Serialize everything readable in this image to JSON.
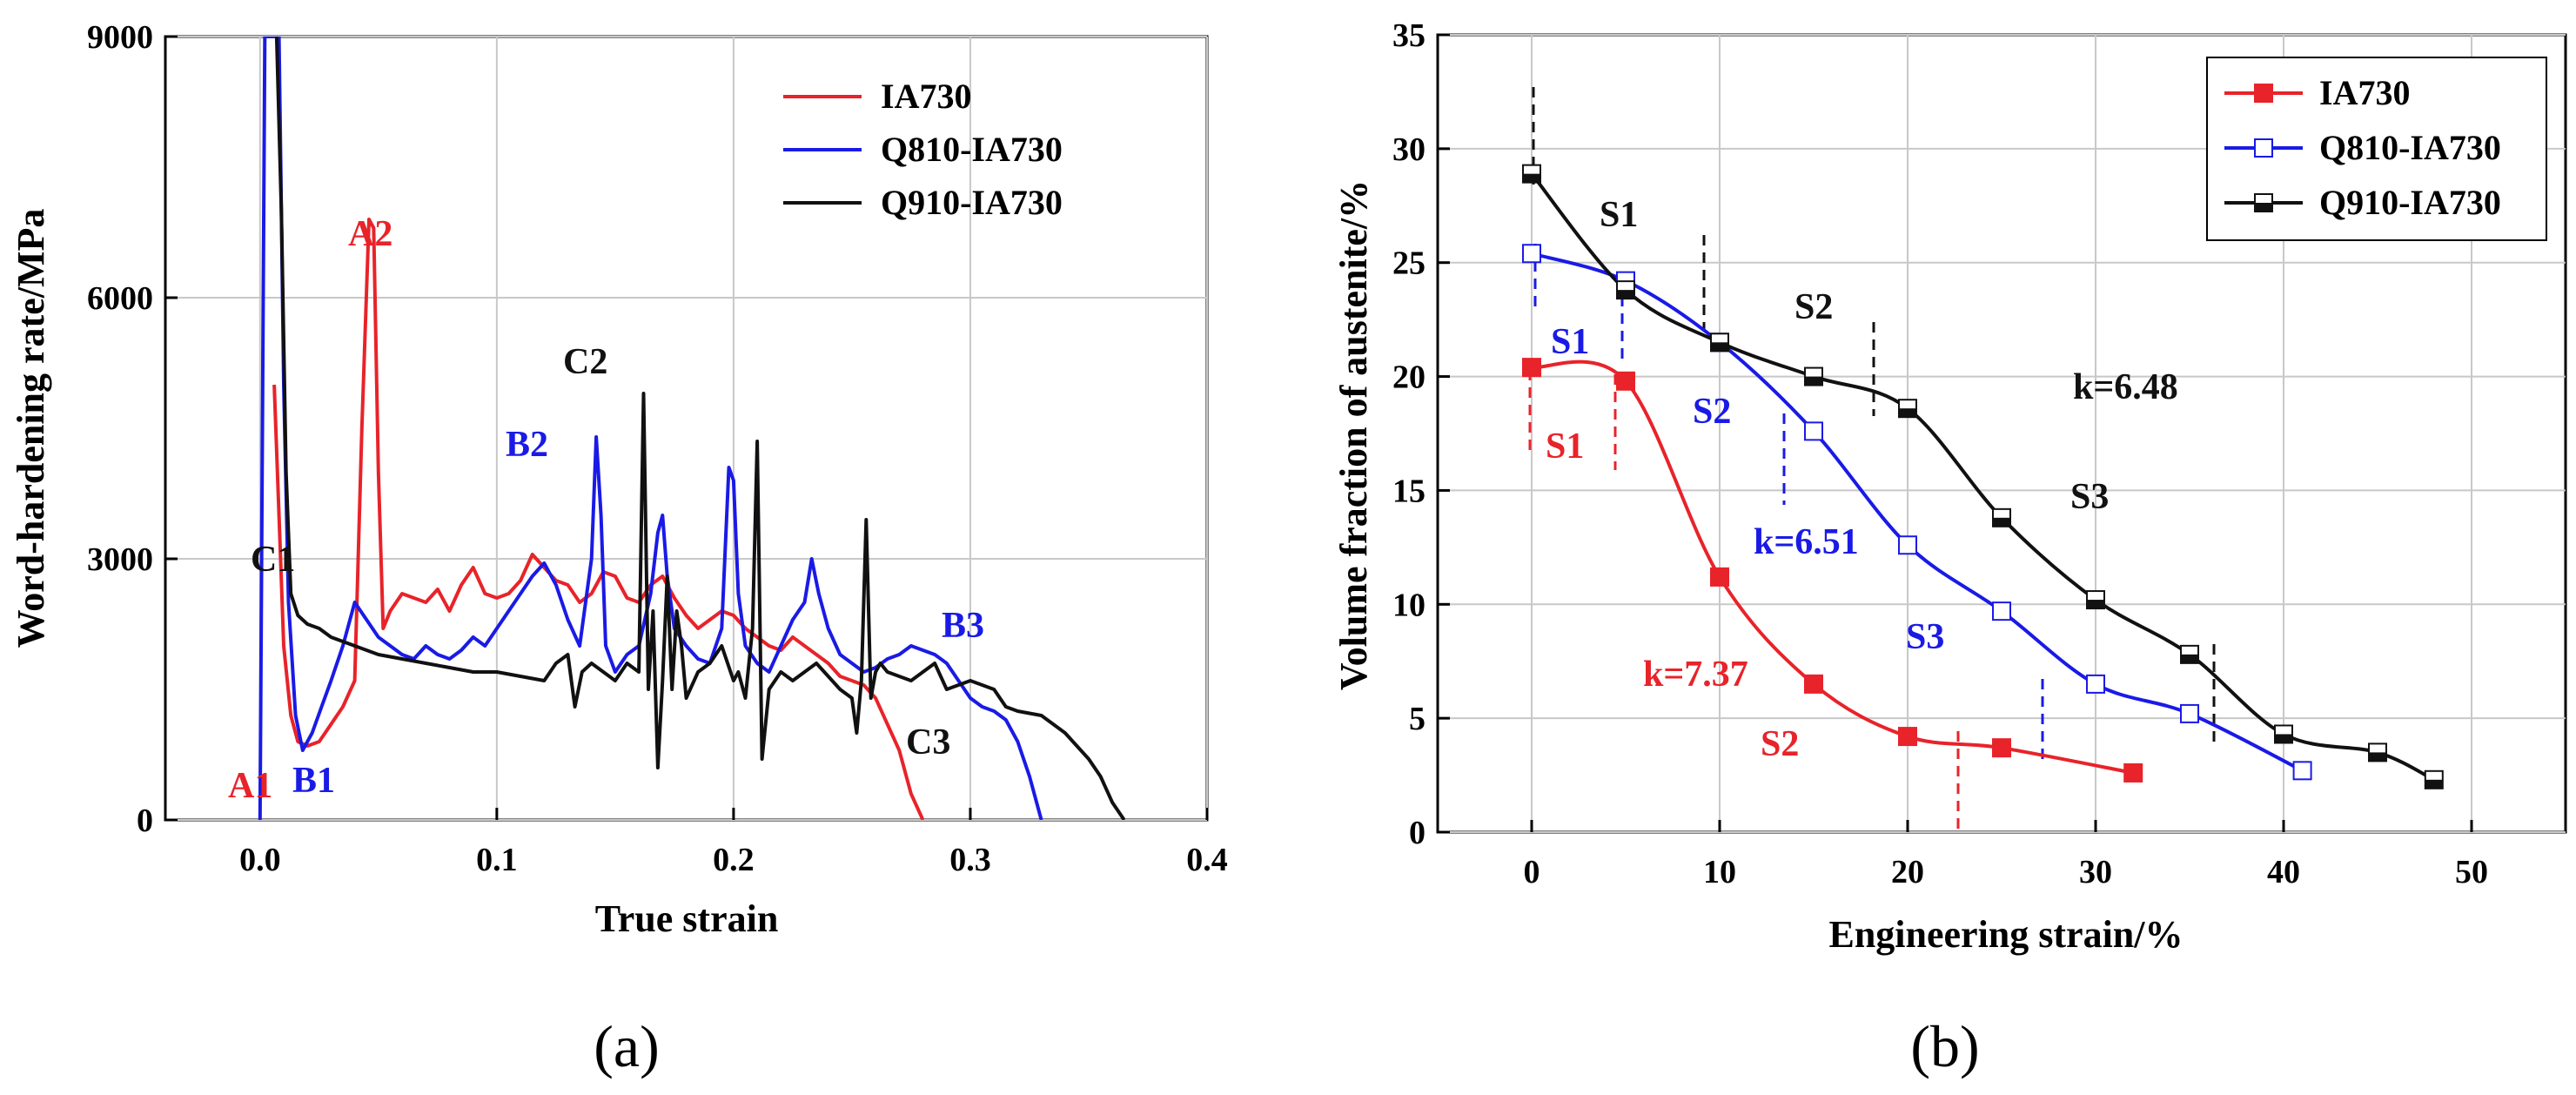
{
  "chart_data": [
    {
      "type": "line",
      "panel_label": "(a)",
      "xlabel": "True strain",
      "ylabel": "Word-hardening rate/MPa",
      "xlim": [
        -0.04,
        0.4
      ],
      "ylim": [
        0,
        9000
      ],
      "xticks": [
        "0.0",
        "0.1",
        "0.2",
        "0.3",
        "0.4"
      ],
      "yticks": [
        "0",
        "3000",
        "6000",
        "9000"
      ],
      "grid": true,
      "legend_position": "top-right",
      "series": [
        {
          "name": "IA730",
          "color": "#e8232a",
          "x": [
            0.006,
            0.008,
            0.01,
            0.013,
            0.016,
            0.02,
            0.025,
            0.03,
            0.035,
            0.04,
            0.043,
            0.046,
            0.048,
            0.05,
            0.052,
            0.055,
            0.06,
            0.065,
            0.07,
            0.075,
            0.08,
            0.085,
            0.09,
            0.095,
            0.1,
            0.105,
            0.11,
            0.115,
            0.12,
            0.125,
            0.13,
            0.135,
            0.14,
            0.145,
            0.15,
            0.155,
            0.16,
            0.165,
            0.17,
            0.175,
            0.18,
            0.185,
            0.19,
            0.195,
            0.2,
            0.205,
            0.21,
            0.215,
            0.22,
            0.225,
            0.23,
            0.235,
            0.24,
            0.245,
            0.25,
            0.255,
            0.26,
            0.265,
            0.27,
            0.275,
            0.28
          ],
          "y": [
            5000,
            3500,
            2000,
            1200,
            900,
            850,
            900,
            1100,
            1300,
            1600,
            4500,
            6900,
            6800,
            4000,
            2200,
            2400,
            2600,
            2550,
            2500,
            2650,
            2400,
            2700,
            2900,
            2600,
            2550,
            2600,
            2750,
            3050,
            2900,
            2750,
            2700,
            2500,
            2600,
            2850,
            2800,
            2550,
            2500,
            2700,
            2800,
            2550,
            2350,
            2200,
            2300,
            2400,
            2350,
            2200,
            2100,
            2000,
            1950,
            2100,
            2000,
            1900,
            1800,
            1650,
            1600,
            1550,
            1400,
            1100,
            800,
            300,
            0
          ]
        },
        {
          "name": "Q810-IA730",
          "color": "#1a1ae6",
          "x": [
            0.0,
            0.002,
            0.004,
            0.006,
            0.008,
            0.01,
            0.012,
            0.015,
            0.018,
            0.022,
            0.026,
            0.03,
            0.035,
            0.04,
            0.045,
            0.05,
            0.055,
            0.06,
            0.065,
            0.07,
            0.075,
            0.08,
            0.085,
            0.09,
            0.095,
            0.1,
            0.105,
            0.11,
            0.115,
            0.12,
            0.125,
            0.13,
            0.135,
            0.14,
            0.142,
            0.144,
            0.146,
            0.15,
            0.155,
            0.16,
            0.165,
            0.168,
            0.17,
            0.172,
            0.175,
            0.18,
            0.185,
            0.19,
            0.195,
            0.198,
            0.2,
            0.202,
            0.205,
            0.21,
            0.215,
            0.22,
            0.225,
            0.23,
            0.233,
            0.236,
            0.24,
            0.245,
            0.25,
            0.255,
            0.26,
            0.265,
            0.27,
            0.275,
            0.28,
            0.285,
            0.29,
            0.295,
            0.3,
            0.305,
            0.31,
            0.315,
            0.32,
            0.325,
            0.33
          ],
          "y": [
            0,
            9000,
            9000,
            9000,
            9000,
            5000,
            2500,
            1200,
            800,
            1000,
            1300,
            1600,
            2000,
            2500,
            2300,
            2100,
            2000,
            1900,
            1850,
            2000,
            1900,
            1850,
            1950,
            2100,
            2000,
            2200,
            2400,
            2600,
            2800,
            2950,
            2700,
            2300,
            2000,
            3000,
            4400,
            3500,
            2000,
            1700,
            1900,
            2000,
            2600,
            3300,
            3500,
            2800,
            2200,
            2000,
            1850,
            1800,
            2200,
            4050,
            3900,
            2600,
            2000,
            1800,
            1700,
            2000,
            2300,
            2500,
            3000,
            2600,
            2200,
            1900,
            1800,
            1700,
            1750,
            1850,
            1900,
            2000,
            1950,
            1900,
            1800,
            1600,
            1400,
            1300,
            1250,
            1150,
            900,
            500,
            0
          ]
        },
        {
          "name": "Q910-IA730",
          "color": "#111111",
          "x": [
            0.007,
            0.009,
            0.011,
            0.013,
            0.016,
            0.02,
            0.025,
            0.03,
            0.04,
            0.05,
            0.06,
            0.07,
            0.08,
            0.09,
            0.1,
            0.11,
            0.12,
            0.125,
            0.13,
            0.133,
            0.136,
            0.14,
            0.145,
            0.15,
            0.155,
            0.16,
            0.162,
            0.164,
            0.166,
            0.168,
            0.17,
            0.172,
            0.174,
            0.176,
            0.178,
            0.18,
            0.185,
            0.19,
            0.195,
            0.2,
            0.202,
            0.205,
            0.208,
            0.21,
            0.212,
            0.215,
            0.22,
            0.225,
            0.23,
            0.235,
            0.24,
            0.245,
            0.25,
            0.252,
            0.254,
            0.256,
            0.258,
            0.26,
            0.262,
            0.265,
            0.27,
            0.275,
            0.28,
            0.285,
            0.29,
            0.3,
            0.31,
            0.315,
            0.32,
            0.33,
            0.34,
            0.35,
            0.355,
            0.36,
            0.365
          ],
          "y": [
            9000,
            7000,
            4000,
            2600,
            2350,
            2250,
            2200,
            2100,
            2000,
            1900,
            1850,
            1800,
            1750,
            1700,
            1700,
            1650,
            1600,
            1800,
            1900,
            1300,
            1700,
            1800,
            1700,
            1600,
            1800,
            1700,
            4900,
            1500,
            2400,
            600,
            1600,
            2800,
            1500,
            2400,
            2000,
            1400,
            1700,
            1800,
            2000,
            1600,
            1700,
            1400,
            2200,
            4350,
            700,
            1500,
            1700,
            1600,
            1700,
            1800,
            1650,
            1500,
            1400,
            1000,
            1600,
            3450,
            1400,
            1700,
            1800,
            1700,
            1650,
            1600,
            1700,
            1800,
            1500,
            1600,
            1500,
            1300,
            1250,
            1200,
            1000,
            700,
            500,
            200,
            0
          ]
        }
      ],
      "annotations": [
        {
          "text": "A1",
          "color": "#e8232a"
        },
        {
          "text": "A2",
          "color": "#e8232a"
        },
        {
          "text": "B1",
          "color": "#1a1ae6"
        },
        {
          "text": "B2",
          "color": "#1a1ae6"
        },
        {
          "text": "B3",
          "color": "#1a1ae6"
        },
        {
          "text": "C1",
          "color": "#111111"
        },
        {
          "text": "C2",
          "color": "#111111"
        },
        {
          "text": "C3",
          "color": "#111111"
        }
      ]
    },
    {
      "type": "line",
      "panel_label": "(b)",
      "xlabel": "Engineering strain/%",
      "ylabel": "Volume fraction of austenite/%",
      "xlim": [
        -5,
        55
      ],
      "ylim": [
        0,
        35
      ],
      "xticks": [
        "0",
        "10",
        "20",
        "30",
        "40",
        "50"
      ],
      "yticks": [
        "0",
        "5",
        "10",
        "15",
        "20",
        "25",
        "30",
        "35"
      ],
      "grid": true,
      "legend_position": "top-right",
      "series": [
        {
          "name": "IA730",
          "color": "#e8232a",
          "marker": "filled-square",
          "x": [
            0,
            5,
            10,
            15,
            20,
            25,
            32
          ],
          "y": [
            20.4,
            19.8,
            11.2,
            6.5,
            4.2,
            3.7,
            2.6
          ]
        },
        {
          "name": "Q810-IA730",
          "color": "#1a1ae6",
          "marker": "open-square",
          "x": [
            0,
            5,
            10,
            15,
            20,
            25,
            30,
            35,
            41
          ],
          "y": [
            25.4,
            24.2,
            21.5,
            17.6,
            12.6,
            9.7,
            6.5,
            5.2,
            2.7
          ]
        },
        {
          "name": "Q910-IA730",
          "color": "#111111",
          "marker": "half-square",
          "x": [
            0,
            5,
            10,
            15,
            20,
            25,
            30,
            35,
            40,
            45,
            48
          ],
          "y": [
            28.9,
            23.8,
            21.5,
            20.0,
            18.6,
            13.8,
            10.2,
            7.8,
            4.3,
            3.5,
            2.3
          ]
        }
      ],
      "annotations": [
        {
          "text": "S1",
          "color": "#111111"
        },
        {
          "text": "S2",
          "color": "#111111"
        },
        {
          "text": "k=6.48",
          "color": "#111111"
        },
        {
          "text": "S3",
          "color": "#111111"
        },
        {
          "text": "S1",
          "color": "#1a1ae6"
        },
        {
          "text": "S2",
          "color": "#1a1ae6"
        },
        {
          "text": "k=6.51",
          "color": "#1a1ae6"
        },
        {
          "text": "S3",
          "color": "#1a1ae6"
        },
        {
          "text": "S1",
          "color": "#e8232a"
        },
        {
          "text": "k=7.37",
          "color": "#e8232a"
        },
        {
          "text": "S2",
          "color": "#e8232a"
        }
      ]
    }
  ]
}
